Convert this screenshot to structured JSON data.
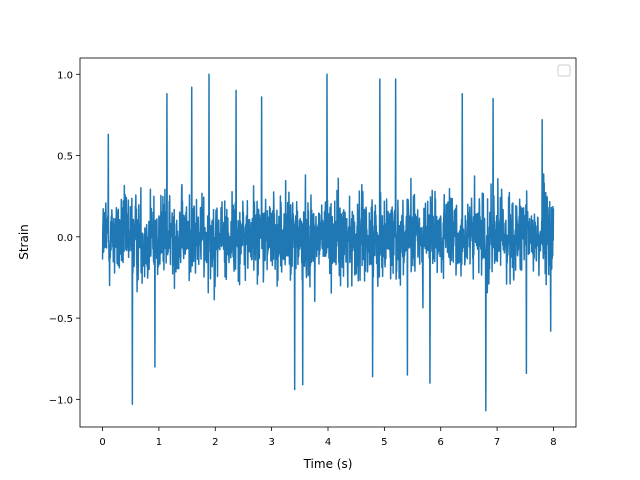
{
  "chart_data": {
    "type": "line",
    "title": "",
    "xlabel": "Time (s)",
    "ylabel": "Strain",
    "xlim": [
      -0.4,
      8.4
    ],
    "ylim": [
      -1.17,
      1.1
    ],
    "xticks": [
      0,
      1,
      2,
      3,
      4,
      5,
      6,
      7,
      8
    ],
    "xtick_labels": [
      "0",
      "1",
      "2",
      "3",
      "4",
      "5",
      "6",
      "7",
      "8"
    ],
    "yticks": [
      -1.0,
      -0.5,
      0.0,
      0.5,
      1.0
    ],
    "ytick_labels": [
      "−1.0",
      "−0.5",
      "0.0",
      "0.5",
      "1.0"
    ],
    "grid": false,
    "legend": {
      "placement": "upper right",
      "entries": []
    },
    "series": [
      {
        "color": "#1f77b4",
        "x_range": [
          0,
          8
        ],
        "peaks": [
          {
            "x": 0.53,
            "y": -1.03
          },
          {
            "x": 1.89,
            "y": 1.0
          },
          {
            "x": 3.98,
            "y": 1.0
          },
          {
            "x": 6.8,
            "y": -1.07
          },
          {
            "x": 0.1,
            "y": 0.63
          },
          {
            "x": 0.93,
            "y": -0.8
          },
          {
            "x": 1.14,
            "y": 0.88
          },
          {
            "x": 1.58,
            "y": 0.92
          },
          {
            "x": 2.37,
            "y": 0.9
          },
          {
            "x": 2.82,
            "y": 0.86
          },
          {
            "x": 3.41,
            "y": -0.94
          },
          {
            "x": 3.55,
            "y": -0.91
          },
          {
            "x": 4.79,
            "y": -0.86
          },
          {
            "x": 4.92,
            "y": 0.97
          },
          {
            "x": 5.2,
            "y": 0.97
          },
          {
            "x": 5.41,
            "y": -0.85
          },
          {
            "x": 5.81,
            "y": -0.9
          },
          {
            "x": 6.38,
            "y": 0.88
          },
          {
            "x": 6.93,
            "y": 0.85
          },
          {
            "x": 7.52,
            "y": -0.84
          },
          {
            "x": 7.8,
            "y": 0.72
          },
          {
            "x": 7.95,
            "y": -0.58
          }
        ]
      }
    ]
  }
}
